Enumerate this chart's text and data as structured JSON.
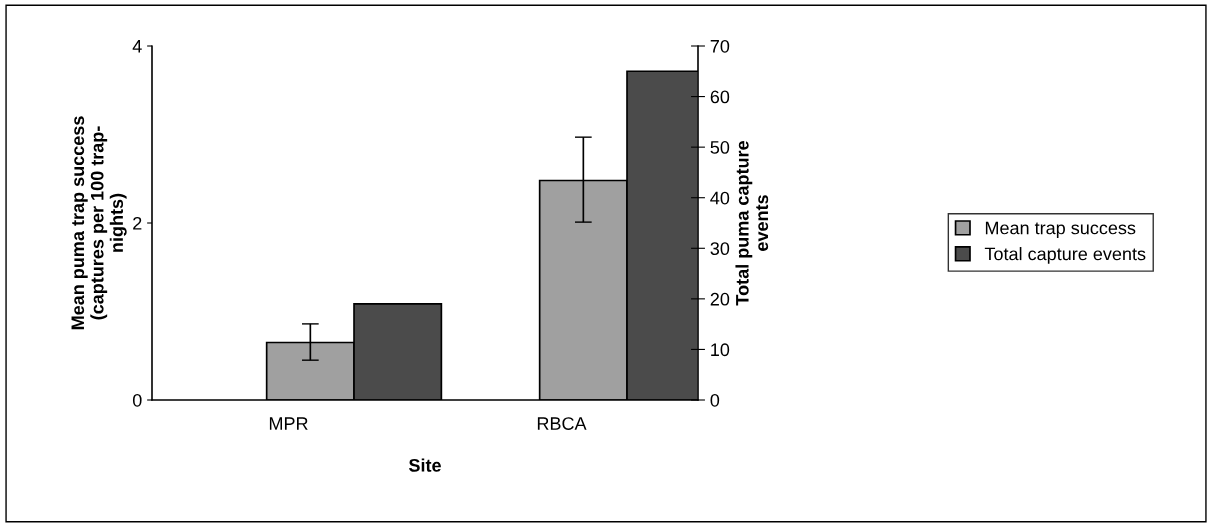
{
  "chart_data": {
    "type": "bar",
    "xlabel": "Site",
    "ylabel": "Mean puma trap success\n(captures per 100 trap-\nnights)",
    "y2label": "Total puma capture\nevents",
    "categories": [
      "MPR",
      "RBCA"
    ],
    "series": [
      {
        "name": "Mean trap success",
        "color": "#a0a0a0",
        "values": [
          0.65,
          2.48
        ],
        "errors": [
          [
            0.45,
            0.86
          ],
          [
            2.01,
            2.97
          ]
        ]
      },
      {
        "name": "Total capture events",
        "color": "#4b4b4b",
        "values": [
          19,
          65
        ],
        "axis": "y2"
      }
    ],
    "ylim": [
      0,
      4
    ],
    "yticks": [
      0,
      2,
      4
    ],
    "y2lim": [
      0,
      70
    ],
    "y2ticks": [
      0,
      10,
      20,
      30,
      40,
      50,
      60,
      70
    ],
    "grid": false,
    "legend": "right"
  }
}
